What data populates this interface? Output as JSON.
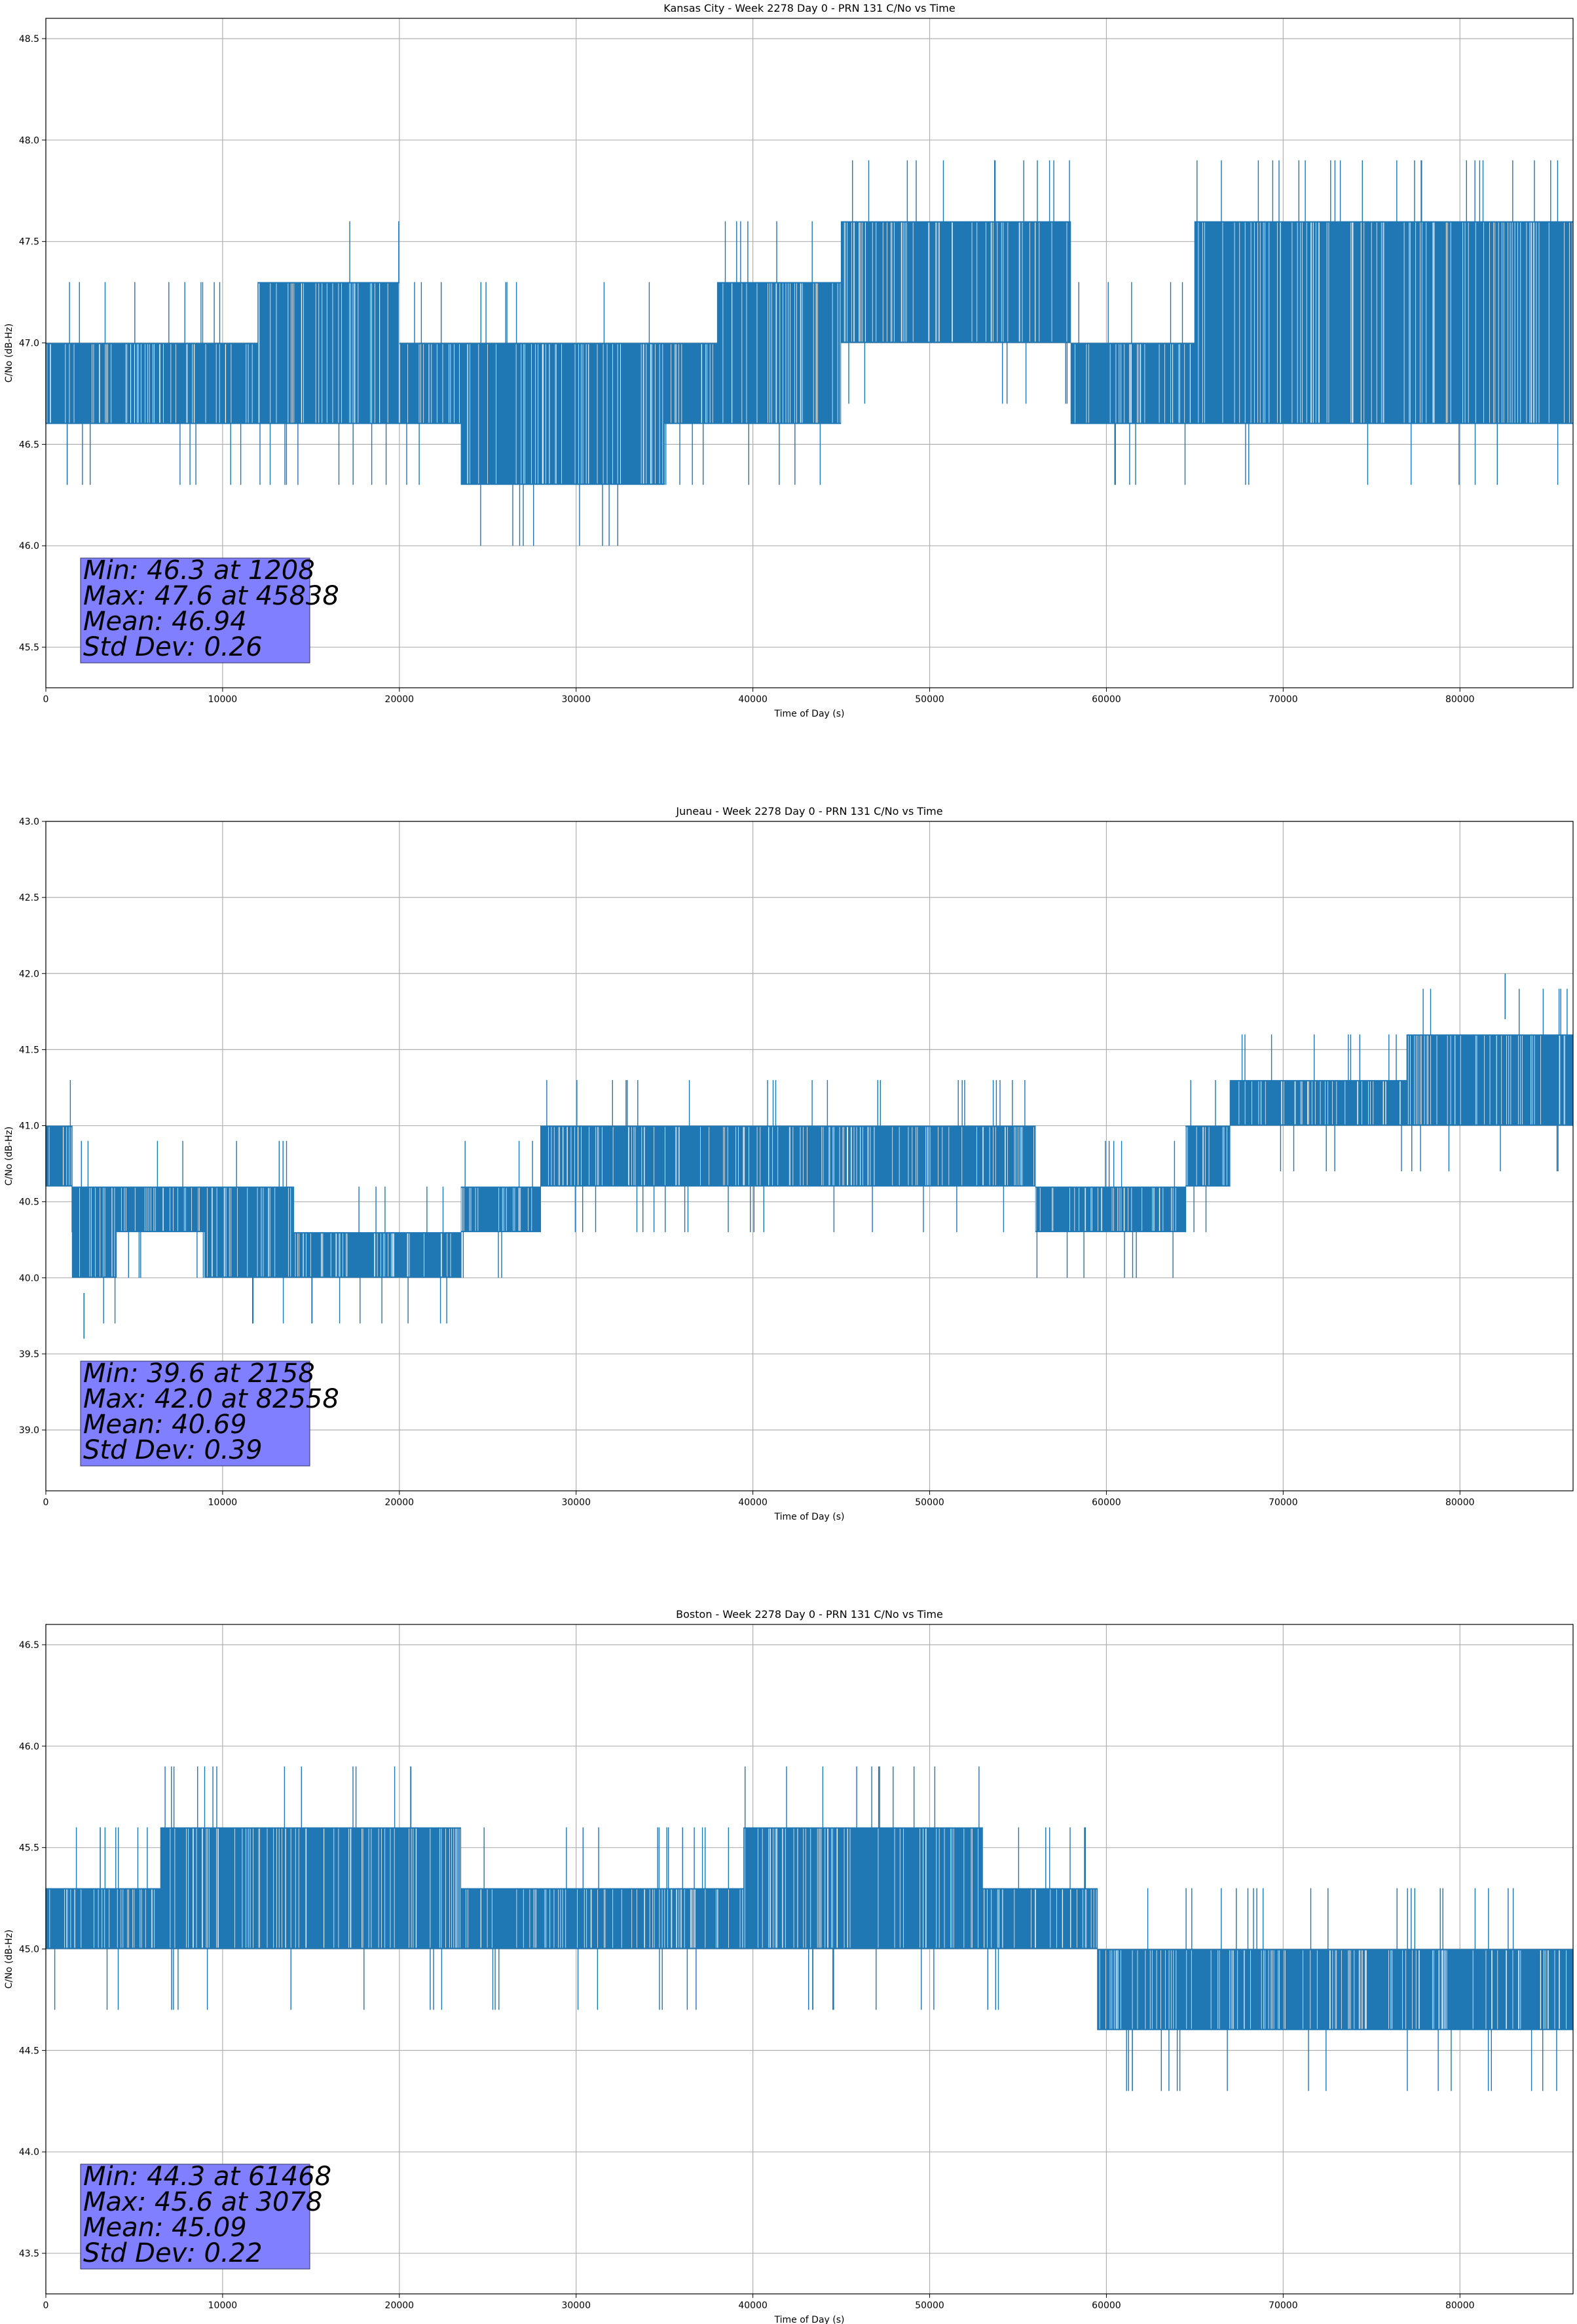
{
  "chart_data": [
    {
      "type": "line",
      "title": "Kansas City - Week 2278 Day 0 - PRN 131 C/No vs Time",
      "xlabel": "Time of Day (s)",
      "ylabel": "C/No (dB-Hz)",
      "xlim": [
        0,
        86400
      ],
      "ylim": [
        45.3,
        48.6
      ],
      "xticks": [
        0,
        10000,
        20000,
        30000,
        40000,
        50000,
        60000,
        70000,
        80000
      ],
      "yticks": [
        45.5,
        46.0,
        46.5,
        47.0,
        47.5,
        48.0,
        48.5
      ],
      "grid": true,
      "line_color": "#1f77b4",
      "quantization_step": 0.3,
      "segments": [
        {
          "from": 0,
          "to": 12000,
          "low": 46.6,
          "high": 47.0
        },
        {
          "from": 12000,
          "to": 20000,
          "low": 46.6,
          "high": 47.3
        },
        {
          "from": 20000,
          "to": 23500,
          "low": 46.6,
          "high": 47.0
        },
        {
          "from": 23500,
          "to": 35000,
          "low": 46.3,
          "high": 47.0
        },
        {
          "from": 35000,
          "to": 38000,
          "low": 46.6,
          "high": 47.0
        },
        {
          "from": 38000,
          "to": 45000,
          "low": 46.6,
          "high": 47.3
        },
        {
          "from": 45000,
          "to": 58000,
          "low": 47.0,
          "high": 47.6
        },
        {
          "from": 58000,
          "to": 65000,
          "low": 46.6,
          "high": 47.0
        },
        {
          "from": 65000,
          "to": 86400,
          "low": 46.6,
          "high": 47.6
        }
      ],
      "stats": {
        "min_value": 46.3,
        "min_time": 1208,
        "max_value": 47.6,
        "max_time": 45838,
        "mean": 46.94,
        "std_dev": 0.26
      },
      "stats_lines": [
        "Min: 46.3 at 1208",
        "Max: 47.6 at 45838",
        "Mean: 46.94",
        "Std Dev: 0.26"
      ]
    },
    {
      "type": "line",
      "title": "Juneau - Week 2278 Day 0 - PRN 131 C/No vs Time",
      "xlabel": "Time of Day (s)",
      "ylabel": "C/No (dB-Hz)",
      "xlim": [
        0,
        86400
      ],
      "ylim": [
        38.6,
        43.0
      ],
      "xticks": [
        0,
        10000,
        20000,
        30000,
        40000,
        50000,
        60000,
        70000,
        80000
      ],
      "yticks": [
        39.0,
        39.5,
        40.0,
        40.5,
        41.0,
        41.5,
        42.0,
        42.5,
        43.0
      ],
      "grid": true,
      "line_color": "#1f77b4",
      "quantization_step": 0.3,
      "segments": [
        {
          "from": 0,
          "to": 1500,
          "low": 40.6,
          "high": 41.0
        },
        {
          "from": 1500,
          "to": 4000,
          "low": 40.0,
          "high": 40.6
        },
        {
          "from": 4000,
          "to": 9000,
          "low": 40.3,
          "high": 40.6
        },
        {
          "from": 9000,
          "to": 14000,
          "low": 40.0,
          "high": 40.6
        },
        {
          "from": 14000,
          "to": 23500,
          "low": 40.0,
          "high": 40.3
        },
        {
          "from": 23500,
          "to": 28000,
          "low": 40.3,
          "high": 40.6
        },
        {
          "from": 28000,
          "to": 56000,
          "low": 40.6,
          "high": 41.0
        },
        {
          "from": 56000,
          "to": 64500,
          "low": 40.3,
          "high": 40.6
        },
        {
          "from": 64500,
          "to": 67000,
          "low": 40.6,
          "high": 41.0
        },
        {
          "from": 67000,
          "to": 77000,
          "low": 41.0,
          "high": 41.3
        },
        {
          "from": 77000,
          "to": 86400,
          "low": 41.0,
          "high": 41.6
        }
      ],
      "stats": {
        "min_value": 39.6,
        "min_time": 2158,
        "max_value": 42.0,
        "max_time": 82558,
        "mean": 40.69,
        "std_dev": 0.39
      },
      "stats_lines": [
        "Min: 39.6 at 2158",
        "Max: 42.0 at 82558",
        "Mean: 40.69",
        "Std Dev: 0.39"
      ]
    },
    {
      "type": "line",
      "title": "Boston - Week 2278 Day 0 - PRN 131 C/No vs Time",
      "xlabel": "Time of Day (s)",
      "ylabel": "C/No (dB-Hz)",
      "xlim": [
        0,
        86400
      ],
      "ylim": [
        43.3,
        46.6
      ],
      "xticks": [
        0,
        10000,
        20000,
        30000,
        40000,
        50000,
        60000,
        70000,
        80000
      ],
      "yticks": [
        43.5,
        44.0,
        44.5,
        45.0,
        45.5,
        46.0,
        46.5
      ],
      "grid": true,
      "line_color": "#1f77b4",
      "quantization_step": 0.3,
      "segments": [
        {
          "from": 0,
          "to": 6500,
          "low": 45.0,
          "high": 45.3
        },
        {
          "from": 6500,
          "to": 23500,
          "low": 45.0,
          "high": 45.6
        },
        {
          "from": 23500,
          "to": 39500,
          "low": 45.0,
          "high": 45.3
        },
        {
          "from": 39500,
          "to": 53000,
          "low": 45.0,
          "high": 45.6
        },
        {
          "from": 53000,
          "to": 59500,
          "low": 45.0,
          "high": 45.3
        },
        {
          "from": 59500,
          "to": 86400,
          "low": 44.6,
          "high": 45.0
        }
      ],
      "stats": {
        "min_value": 44.3,
        "min_time": 61468,
        "max_value": 45.6,
        "max_time": 3078,
        "mean": 45.09,
        "std_dev": 0.22
      },
      "stats_lines": [
        "Min: 44.3 at 61468",
        "Max: 45.6 at 3078",
        "Mean: 45.09",
        "Std Dev: 0.22"
      ]
    }
  ]
}
